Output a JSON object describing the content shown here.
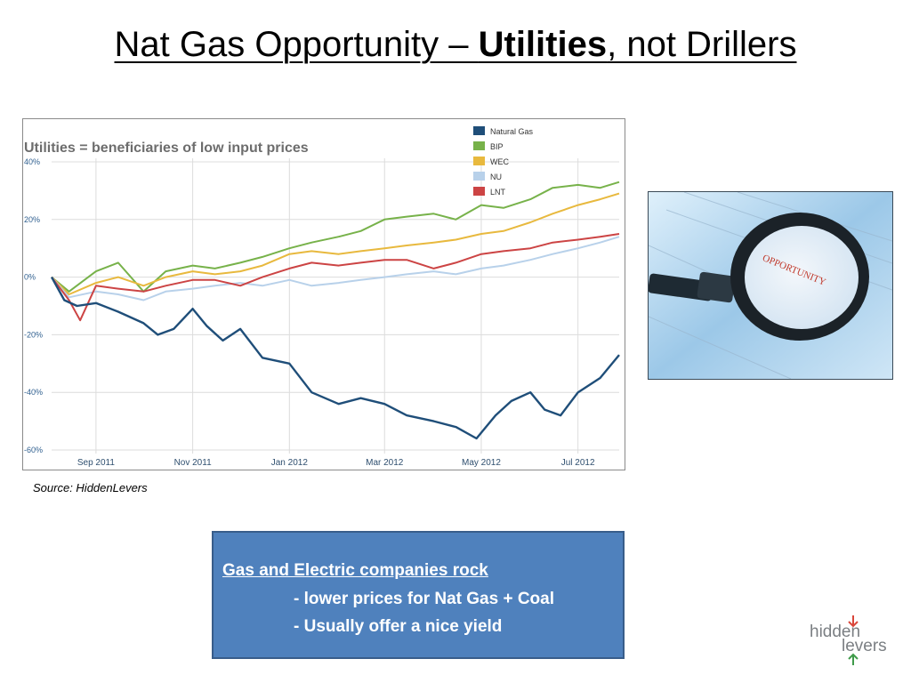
{
  "slide": {
    "title_part1": "Nat Gas Opportunity – ",
    "title_bold": "Utilities",
    "title_part2": ", not Drillers",
    "source": "Source: HiddenLevers"
  },
  "textbox": {
    "heading": "Gas and Electric companies rock",
    "bullet1": "- lower prices for Nat Gas + Coal",
    "bullet2": "- Usually offer a nice yield"
  },
  "photo": {
    "caption": "OPPORTUNITY"
  },
  "logo": {
    "line1": "hidden",
    "line2": "levers"
  },
  "colors": {
    "textbox_bg": "#4f81bd",
    "natural_gas": "#1f4e79",
    "bip": "#77b24a",
    "wec": "#e8b93e",
    "nu": "#b8d1ea",
    "lnt": "#cc4444"
  },
  "chart_data": {
    "type": "line",
    "title": "Utilities = beneficiaries of low input prices",
    "ylim": [
      -60,
      40
    ],
    "yticks": [
      "40%",
      "20%",
      "0%",
      "-20%",
      "-40%",
      "-60%"
    ],
    "ytick_values": [
      40,
      20,
      0,
      -20,
      -40,
      -60
    ],
    "xticks": [
      "Sep 2011",
      "Nov 2011",
      "Jan 2012",
      "Mar 2012",
      "May 2012",
      "Jul 2012"
    ],
    "xtick_dates": [
      "2011-09-01",
      "2011-11-01",
      "2012-01-01",
      "2012-03-01",
      "2012-05-01",
      "2012-07-01"
    ],
    "xlim": [
      "2011-08-04",
      "2012-07-27"
    ],
    "grid": true,
    "legend_position": "top-right",
    "series": [
      {
        "name": "Natural Gas",
        "color": "#1f4e79",
        "x": [
          "2011-08-04",
          "2011-08-12",
          "2011-08-20",
          "2011-09-01",
          "2011-09-15",
          "2011-10-01",
          "2011-10-10",
          "2011-10-20",
          "2011-11-01",
          "2011-11-10",
          "2011-11-20",
          "2011-12-01",
          "2011-12-15",
          "2012-01-01",
          "2012-01-15",
          "2012-02-01",
          "2012-02-15",
          "2012-03-01",
          "2012-03-15",
          "2012-04-01",
          "2012-04-15",
          "2012-04-28",
          "2012-05-10",
          "2012-05-20",
          "2012-06-01",
          "2012-06-10",
          "2012-06-20",
          "2012-07-01",
          "2012-07-15",
          "2012-07-27"
        ],
        "values": [
          0,
          -8,
          -10,
          -9,
          -12,
          -16,
          -20,
          -18,
          -11,
          -17,
          -22,
          -18,
          -28,
          -30,
          -40,
          -44,
          -42,
          -44,
          -48,
          -50,
          -52,
          -56,
          -48,
          -43,
          -40,
          -46,
          -48,
          -40,
          -35,
          -27
        ]
      },
      {
        "name": "BIP",
        "color": "#77b24a",
        "x": [
          "2011-08-04",
          "2011-08-15",
          "2011-09-01",
          "2011-09-15",
          "2011-10-01",
          "2011-10-15",
          "2011-11-01",
          "2011-11-15",
          "2011-12-01",
          "2011-12-15",
          "2012-01-01",
          "2012-01-15",
          "2012-02-01",
          "2012-02-15",
          "2012-03-01",
          "2012-03-15",
          "2012-04-01",
          "2012-04-15",
          "2012-05-01",
          "2012-05-15",
          "2012-06-01",
          "2012-06-15",
          "2012-07-01",
          "2012-07-15",
          "2012-07-27"
        ],
        "values": [
          0,
          -5,
          2,
          5,
          -5,
          2,
          4,
          3,
          5,
          7,
          10,
          12,
          14,
          16,
          20,
          21,
          22,
          20,
          25,
          24,
          27,
          31,
          32,
          31,
          33
        ]
      },
      {
        "name": "WEC",
        "color": "#e8b93e",
        "x": [
          "2011-08-04",
          "2011-08-15",
          "2011-09-01",
          "2011-09-15",
          "2011-10-01",
          "2011-10-15",
          "2011-11-01",
          "2011-11-15",
          "2011-12-01",
          "2011-12-15",
          "2012-01-01",
          "2012-01-15",
          "2012-02-01",
          "2012-02-15",
          "2012-03-01",
          "2012-03-15",
          "2012-04-01",
          "2012-04-15",
          "2012-05-01",
          "2012-05-15",
          "2012-06-01",
          "2012-06-15",
          "2012-07-01",
          "2012-07-15",
          "2012-07-27"
        ],
        "values": [
          0,
          -6,
          -2,
          0,
          -3,
          0,
          2,
          1,
          2,
          4,
          8,
          9,
          8,
          9,
          10,
          11,
          12,
          13,
          15,
          16,
          19,
          22,
          25,
          27,
          29
        ]
      },
      {
        "name": "NU",
        "color": "#b8d1ea",
        "x": [
          "2011-08-04",
          "2011-08-15",
          "2011-09-01",
          "2011-09-15",
          "2011-10-01",
          "2011-10-15",
          "2011-11-01",
          "2011-11-15",
          "2011-12-01",
          "2011-12-15",
          "2012-01-01",
          "2012-01-15",
          "2012-02-01",
          "2012-02-15",
          "2012-03-01",
          "2012-03-15",
          "2012-04-01",
          "2012-04-15",
          "2012-05-01",
          "2012-05-15",
          "2012-06-01",
          "2012-06-15",
          "2012-07-01",
          "2012-07-15",
          "2012-07-27"
        ],
        "values": [
          0,
          -7,
          -5,
          -6,
          -8,
          -5,
          -4,
          -3,
          -2,
          -3,
          -1,
          -3,
          -2,
          -1,
          0,
          1,
          2,
          1,
          3,
          4,
          6,
          8,
          10,
          12,
          14
        ]
      },
      {
        "name": "LNT",
        "color": "#cc4444",
        "x": [
          "2011-08-04",
          "2011-08-15",
          "2011-08-22",
          "2011-09-01",
          "2011-09-15",
          "2011-10-01",
          "2011-10-15",
          "2011-11-01",
          "2011-11-15",
          "2011-12-01",
          "2011-12-15",
          "2012-01-01",
          "2012-01-15",
          "2012-02-01",
          "2012-02-15",
          "2012-03-01",
          "2012-03-15",
          "2012-04-01",
          "2012-04-15",
          "2012-05-01",
          "2012-05-15",
          "2012-06-01",
          "2012-06-15",
          "2012-07-01",
          "2012-07-15",
          "2012-07-27"
        ],
        "values": [
          0,
          -8,
          -15,
          -3,
          -4,
          -5,
          -3,
          -1,
          -1,
          -3,
          0,
          3,
          5,
          4,
          5,
          6,
          6,
          3,
          5,
          8,
          9,
          10,
          12,
          13,
          14,
          15
        ]
      }
    ]
  }
}
